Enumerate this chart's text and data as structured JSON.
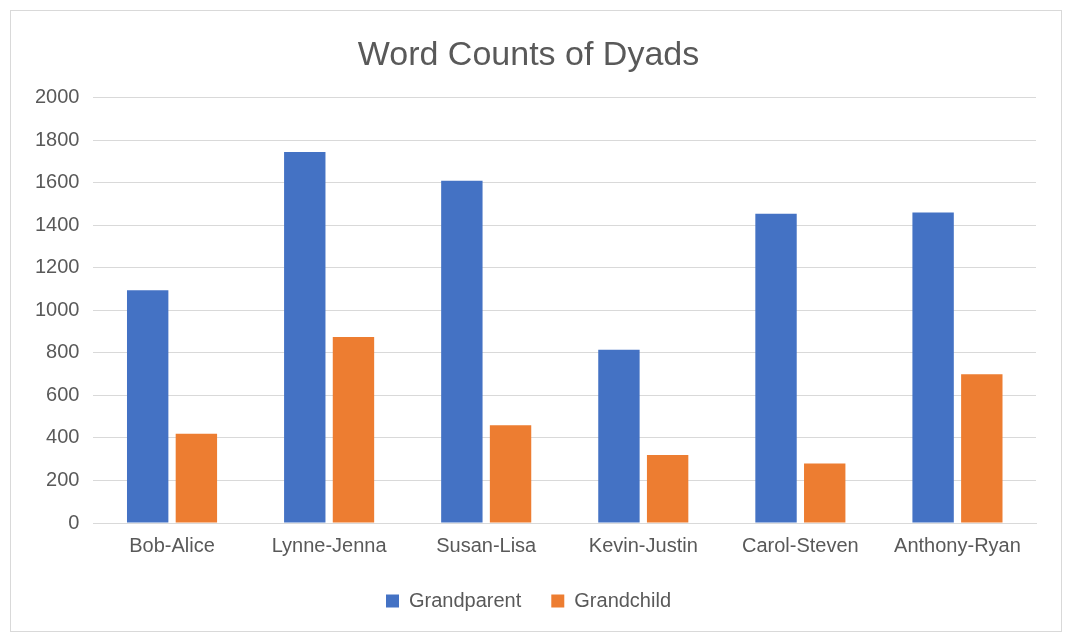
{
  "chart_data": {
    "type": "bar",
    "title": "Word Counts of Dyads",
    "categories": [
      "Bob-Alice",
      "Lynne-Jenna",
      "Susan-Lisa",
      "Kevin-Justin",
      "Carol-Steven",
      "Anthony-Ryan"
    ],
    "series": [
      {
        "name": "Grandparent",
        "color": "#4472c4",
        "values": [
          1095,
          1745,
          1610,
          815,
          1455,
          1460
        ]
      },
      {
        "name": "Grandchild",
        "color": "#ed7d31",
        "values": [
          420,
          875,
          460,
          320,
          280,
          700
        ]
      }
    ],
    "ylim": [
      0,
      2000
    ],
    "yticks": [
      0,
      200,
      400,
      600,
      800,
      1000,
      1200,
      1400,
      1600,
      1800,
      2000
    ],
    "grid": "y",
    "legend": "bottom"
  }
}
